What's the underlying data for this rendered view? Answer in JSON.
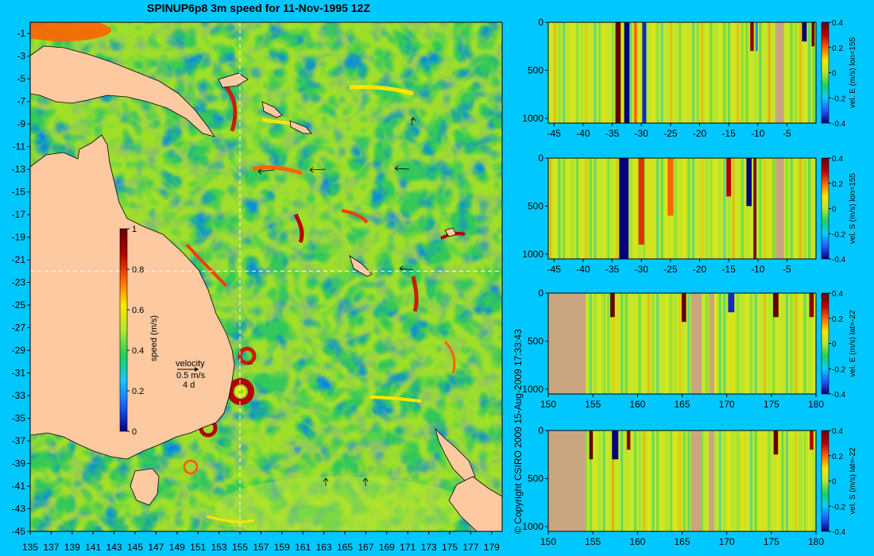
{
  "title": "SPINUP6p8 3m speed for 11-Nov-1995 12Z",
  "copyright": "© Copyright CSIRO 2009  15-Aug-2009 17:33:43",
  "colors": {
    "background": "#00c8ff",
    "land": "#fdc9a0",
    "section_land": "#c9a67f",
    "scale": [
      "#000080",
      "#1e5cff",
      "#14c8ff",
      "#1ed25a",
      "#b4e632",
      "#ffe600",
      "#ff6400",
      "#b40000",
      "#640000"
    ]
  },
  "chart_data": [
    {
      "id": "map",
      "type": "heatmap",
      "title": "SPINUP6p8 3m speed for 11-Nov-1995 12Z",
      "xlim": [
        135,
        180
      ],
      "ylim": [
        -45,
        0
      ],
      "x_ticks": [
        135,
        137,
        139,
        141,
        143,
        145,
        147,
        149,
        151,
        153,
        155,
        157,
        159,
        161,
        163,
        165,
        167,
        169,
        171,
        173,
        175,
        177,
        179
      ],
      "y_ticks": [
        -1,
        -3,
        -5,
        -7,
        -9,
        -11,
        -13,
        -15,
        -17,
        -19,
        -21,
        -23,
        -25,
        -27,
        -29,
        -31,
        -33,
        -35,
        -37,
        -39,
        -41,
        -43,
        -45
      ],
      "crosshair": {
        "lon": 155,
        "lat": -22
      },
      "colorbar": {
        "label": "speed (m/s)",
        "range": [
          0,
          1
        ],
        "ticks": [
          0,
          0.2,
          0.4,
          0.6,
          0.8,
          1
        ]
      },
      "legend": {
        "title": "velocity",
        "speed": "0.5 m/s",
        "period": "4 d"
      }
    },
    {
      "id": "section-lon155-east",
      "type": "heatmap",
      "xlim": [
        -46,
        0
      ],
      "ylim": [
        1050,
        0
      ],
      "x_ticks": [
        -45,
        -40,
        -35,
        -30,
        -25,
        -20,
        -15,
        -10,
        -5
      ],
      "y_ticks": [
        0,
        500,
        1000
      ],
      "colorbar": {
        "label": "vel. E (m/s)  lon=155",
        "range": [
          -0.4,
          0.4
        ],
        "ticks": [
          -0.4,
          -0.2,
          0,
          0.2,
          0.4
        ]
      },
      "land": [
        [
          -7,
          -5.5
        ]
      ],
      "features": [
        {
          "x": -34,
          "v": 0.45,
          "w": 0.9,
          "depth": 1050
        },
        {
          "x": -32.5,
          "v": -0.4,
          "w": 0.9,
          "depth": 1050
        },
        {
          "x": -31,
          "v": 0.2,
          "w": 0.5,
          "depth": 1050
        },
        {
          "x": -29.5,
          "v": -0.35,
          "w": 0.7,
          "depth": 1050
        },
        {
          "x": -11,
          "v": 0.35,
          "w": 0.6,
          "depth": 300
        },
        {
          "x": -10.2,
          "v": -0.25,
          "w": 0.4,
          "depth": 300
        },
        {
          "x": -2,
          "v": -0.4,
          "w": 0.8,
          "depth": 200
        },
        {
          "x": -0.5,
          "v": 0.45,
          "w": 0.5,
          "depth": 250
        }
      ]
    },
    {
      "id": "section-lon155-south",
      "type": "heatmap",
      "xlim": [
        -46,
        0
      ],
      "ylim": [
        1050,
        0
      ],
      "x_ticks": [
        -45,
        -40,
        -35,
        -30,
        -25,
        -20,
        -15,
        -10,
        -5
      ],
      "y_ticks": [
        0,
        500,
        1000
      ],
      "colorbar": {
        "label": "vel. S (m/s)  lon=155",
        "range": [
          -0.4,
          0.4
        ],
        "ticks": [
          -0.4,
          -0.2,
          0,
          0.2,
          0.4
        ]
      },
      "land": [
        [
          -7,
          -5.5
        ]
      ],
      "features": [
        {
          "x": -33,
          "v": -0.4,
          "w": 1.6,
          "depth": 1050
        },
        {
          "x": -30,
          "v": 0.25,
          "w": 1.0,
          "depth": 900
        },
        {
          "x": -25,
          "v": 0.2,
          "w": 1.0,
          "depth": 600
        },
        {
          "x": -15,
          "v": 0.3,
          "w": 0.8,
          "depth": 400
        },
        {
          "x": -11.5,
          "v": -0.4,
          "w": 0.9,
          "depth": 500
        },
        {
          "x": -10.5,
          "v": 0.35,
          "w": 0.5,
          "depth": 1050
        }
      ]
    },
    {
      "id": "section-lat22-east",
      "type": "heatmap",
      "xlim": [
        150,
        180
      ],
      "ylim": [
        1050,
        0
      ],
      "x_ticks": [
        150,
        155,
        160,
        165,
        170,
        175,
        180
      ],
      "y_ticks": [
        0,
        500,
        1000
      ],
      "colorbar": {
        "label": "vel. E (m/s)  lat=-22",
        "range": [
          -0.4,
          0.4
        ],
        "ticks": [
          -0.4,
          -0.2,
          0,
          0.2,
          0.4
        ]
      },
      "land": [
        [
          150,
          154.2
        ],
        [
          166,
          167.2
        ],
        [
          168,
          168.6
        ]
      ],
      "features": [
        {
          "x": 157.2,
          "v": 0.4,
          "w": 0.5,
          "depth": 250
        },
        {
          "x": 165.2,
          "v": 0.4,
          "w": 0.5,
          "depth": 300
        },
        {
          "x": 170.5,
          "v": -0.35,
          "w": 0.7,
          "depth": 200
        },
        {
          "x": 175.5,
          "v": 0.4,
          "w": 0.6,
          "depth": 250
        },
        {
          "x": 179.5,
          "v": 0.35,
          "w": 0.5,
          "depth": 250
        }
      ]
    },
    {
      "id": "section-lat22-south",
      "type": "heatmap",
      "xlim": [
        150,
        180
      ],
      "ylim": [
        1050,
        0
      ],
      "x_ticks": [
        150,
        155,
        160,
        165,
        170,
        175,
        180
      ],
      "y_ticks": [
        0,
        500,
        1000
      ],
      "colorbar": {
        "label": "vel. S (m/s)  lat=-22",
        "range": [
          -0.4,
          0.4
        ],
        "ticks": [
          -0.4,
          -0.2,
          0,
          0.2,
          0.4
        ]
      },
      "land": [
        [
          150,
          154.2
        ],
        [
          166,
          167.2
        ],
        [
          168,
          168.6
        ]
      ],
      "features": [
        {
          "x": 154.8,
          "v": 0.4,
          "w": 0.4,
          "depth": 300
        },
        {
          "x": 157.5,
          "v": -0.4,
          "w": 0.7,
          "depth": 300
        },
        {
          "x": 159,
          "v": 0.35,
          "w": 0.4,
          "depth": 200
        },
        {
          "x": 175.5,
          "v": 0.4,
          "w": 0.5,
          "depth": 250
        },
        {
          "x": 179.5,
          "v": 0.3,
          "w": 0.4,
          "depth": 200
        }
      ]
    }
  ]
}
